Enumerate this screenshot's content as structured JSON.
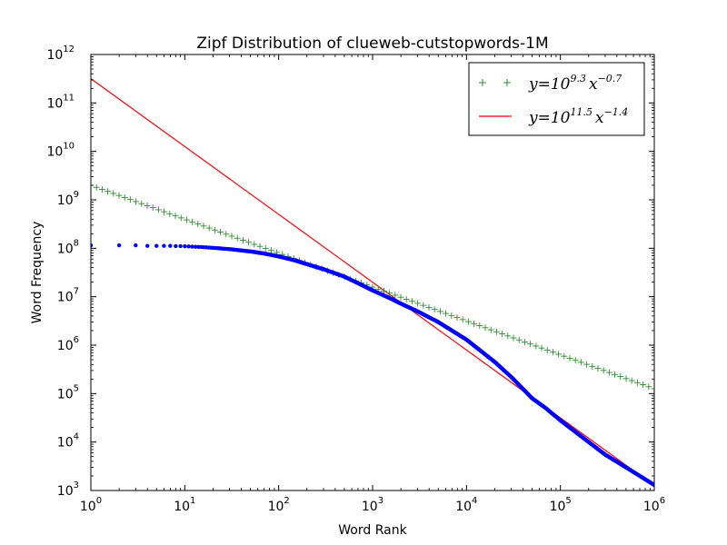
{
  "chart_data": {
    "type": "scatter",
    "title": "Zipf Distribution of clueweb-cutstopwords-1M",
    "xlabel": "Word Rank",
    "ylabel": "Word Frequency",
    "xscale": "log",
    "yscale": "log",
    "xlim": [
      1,
      1000000
    ],
    "ylim": [
      1000,
      1000000000000
    ],
    "grid": false,
    "legend_position": "top-right",
    "x_tick_labels": [
      {
        "base": "10",
        "exp": "0"
      },
      {
        "base": "10",
        "exp": "1"
      },
      {
        "base": "10",
        "exp": "2"
      },
      {
        "base": "10",
        "exp": "3"
      },
      {
        "base": "10",
        "exp": "4"
      },
      {
        "base": "10",
        "exp": "5"
      },
      {
        "base": "10",
        "exp": "6"
      }
    ],
    "y_tick_labels": [
      {
        "base": "10",
        "exp": "3"
      },
      {
        "base": "10",
        "exp": "4"
      },
      {
        "base": "10",
        "exp": "5"
      },
      {
        "base": "10",
        "exp": "6"
      },
      {
        "base": "10",
        "exp": "7"
      },
      {
        "base": "10",
        "exp": "8"
      },
      {
        "base": "10",
        "exp": "9"
      },
      {
        "base": "10",
        "exp": "10"
      },
      {
        "base": "10",
        "exp": "11"
      },
      {
        "base": "10",
        "exp": "12"
      }
    ],
    "series": [
      {
        "kind": "observed",
        "marker": "dot",
        "color": "#0000ff",
        "x": [
          1,
          2,
          3,
          4,
          5,
          6,
          7,
          8,
          9,
          10,
          12,
          15,
          20,
          30,
          50,
          70,
          100,
          150,
          200,
          300,
          500,
          700,
          1000,
          1500,
          2000,
          3000,
          5000,
          7000,
          10000,
          20000,
          30000,
          50000,
          70000,
          100000,
          200000,
          300000,
          500000,
          700000,
          1000000
        ],
        "y": [
          115000000,
          115000000,
          115000000,
          112000000,
          112000000,
          112000000,
          112000000,
          111000000,
          111000000,
          110000000,
          108000000,
          106000000,
          102000000,
          96000000,
          86000000,
          78000000,
          68000000,
          56000000,
          47000000,
          37000000,
          26000000,
          19000000,
          13500000,
          9500000,
          7200000,
          5000000,
          3000000,
          2000000,
          1300000,
          450000,
          220000,
          80000,
          50000,
          28000,
          10000,
          5500,
          3000,
          2000,
          1300
        ]
      },
      {
        "label_base": "y=10",
        "label_exp1": "9.3",
        "label_mid": "x",
        "label_exp2": "−0.7",
        "kind": "fit",
        "marker": "plus",
        "color": "#2e8b2e",
        "coef_log10": 9.3,
        "slope": -0.7
      },
      {
        "label_base": "y=10",
        "label_exp1": "11.5",
        "label_mid": "x",
        "label_exp2": "−1.4",
        "kind": "fit",
        "marker": "line",
        "color": "#ff0000",
        "coef_log10": 11.5,
        "slope": -1.4
      }
    ]
  }
}
